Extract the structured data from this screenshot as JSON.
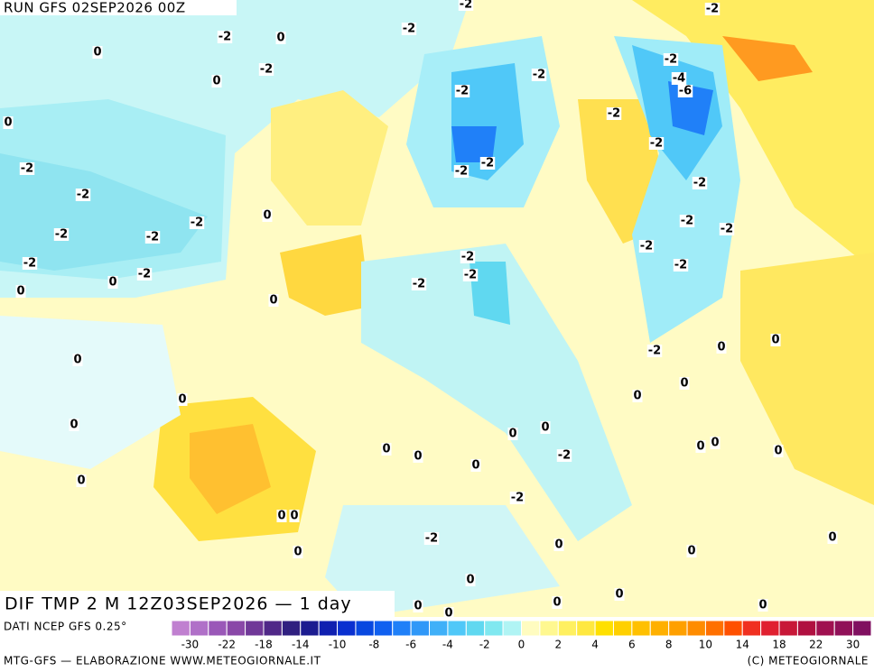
{
  "header": {
    "run": "RUN GFS 02SEP2026 00Z"
  },
  "map": {
    "title": "DIF TMP 2 M 12Z03SEP2026 — 1 day",
    "contour_labels": [
      -2,
      -2,
      -2,
      -2,
      0,
      0,
      -2,
      -2,
      -4,
      -6,
      -2,
      0,
      -2,
      0,
      -2,
      -2,
      -2,
      -2,
      -2,
      -2,
      -2,
      0,
      -2,
      -2,
      -2,
      -2,
      -2,
      -2,
      -2,
      -2,
      -2,
      -2,
      -2,
      0,
      0,
      -2,
      0,
      -2,
      0,
      0,
      0,
      0,
      0,
      0,
      0,
      0,
      0,
      0,
      0,
      0,
      0,
      0,
      0,
      -2,
      0,
      0,
      -2,
      0,
      0,
      -2,
      0,
      0,
      0,
      0,
      0,
      0,
      0,
      0,
      0
    ]
  },
  "colorbar": {
    "ticks": [
      -30,
      -22,
      -18,
      -14,
      -10,
      -8,
      -6,
      -4,
      -2,
      0,
      2,
      4,
      6,
      8,
      10,
      14,
      18,
      22,
      30
    ],
    "colors": [
      "#c080d0",
      "#b070c8",
      "#9a58b8",
      "#8a48a8",
      "#703898",
      "#502888",
      "#302080",
      "#1c1c90",
      "#1020b0",
      "#0a30d0",
      "#0848e0",
      "#1060f0",
      "#2080f8",
      "#3098f8",
      "#40b0f8",
      "#50c8f8",
      "#60d8f0",
      "#80e8f0",
      "#b0f4f4",
      "#fffcc0",
      "#fff890",
      "#fff060",
      "#ffe840",
      "#ffe000",
      "#ffd000",
      "#ffc000",
      "#ffb000",
      "#ffa000",
      "#ff8c00",
      "#ff7000",
      "#ff5000",
      "#f03020",
      "#e02030",
      "#c81838",
      "#b01040",
      "#a01050",
      "#901058",
      "#801060"
    ]
  },
  "footer": {
    "source": "DATI NCEP GFS 0.25°",
    "credit": "MTG-GFS — ELABORAZIONE WWW.METEOGIORNALE.IT",
    "copyright": "(C) METEOGIORNALE"
  }
}
